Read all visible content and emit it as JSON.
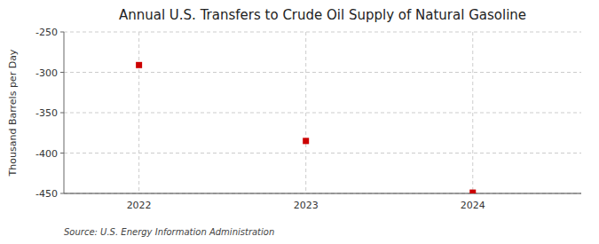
{
  "chart_data": {
    "type": "scatter",
    "title": "Annual U.S. Transfers to Crude Oil Supply of Natural Gasoline",
    "y_label": "Thousand Barrels per Day",
    "annotations": [
      "Source: U.S. Energy Information Administration"
    ],
    "x": [
      2022,
      2023,
      2024
    ],
    "values": [
      -291,
      -385,
      -449
    ],
    "color": "#cc0000",
    "marker": "square",
    "xlim": [
      2021.55,
      2024.65
    ],
    "ylim": [
      -450,
      -250
    ],
    "xticks": [
      2022,
      2023,
      2024
    ],
    "yticks": [
      -450,
      -400,
      -350,
      -300,
      -250
    ],
    "grid": true
  }
}
